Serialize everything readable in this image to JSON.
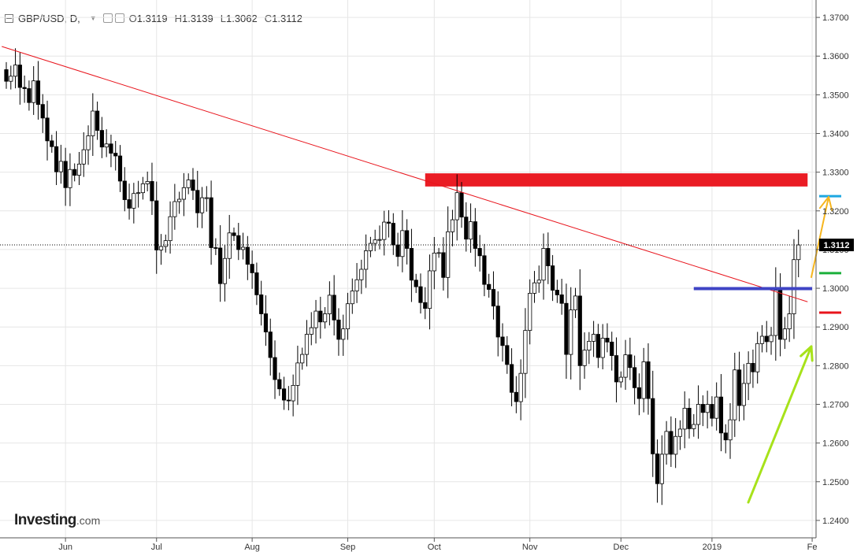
{
  "header": {
    "symbol": "GBP/USD, D,",
    "open_label": "O",
    "open": "1.3119",
    "high_label": "H",
    "high": "1.3139",
    "low_label": "L",
    "low": "1.3062",
    "close_label": "C",
    "close": "1.3112"
  },
  "logo": {
    "main": "Investing",
    "suffix": ".com"
  },
  "chart_data": {
    "type": "candlestick",
    "ylim": [
      1.2355,
      1.3745
    ],
    "y_ticks": [
      "1.3700",
      "1.3600",
      "1.3500",
      "1.3400",
      "1.3300",
      "1.3200",
      "1.3100",
      "1.3000",
      "1.2900",
      "1.2800",
      "1.2700",
      "1.2600",
      "1.2500",
      "1.2400"
    ],
    "x_ticks": [
      {
        "label": "Jun",
        "i": 13
      },
      {
        "label": "Jul",
        "i": 33
      },
      {
        "label": "Aug",
        "i": 54
      },
      {
        "label": "Sep",
        "i": 75
      },
      {
        "label": "Oct",
        "i": 94
      },
      {
        "label": "Nov",
        "i": 115
      },
      {
        "label": "Dec",
        "i": 135
      },
      {
        "label": "2019",
        "i": 155
      },
      {
        "label": "Fe",
        "i": 177
      }
    ],
    "last_price_label": "1.3112",
    "last_price": 1.3112,
    "grid": true,
    "colors": {
      "up": "#ffffff",
      "down": "#000000",
      "trendline": "#e8141c",
      "zone": "#ea1c24",
      "level": "#3f44c5",
      "tick_cyan": "#1ea7e1",
      "tick_green": "#1bb03b",
      "tick_red": "#e8141c",
      "arrow_orange": "#f6b51e",
      "arrow_green": "#a7e21a",
      "grid": "#e6e6e6"
    },
    "trendline": [
      {
        "i": -1,
        "y": 1.3625
      },
      {
        "i": 176,
        "y": 1.2965
      }
    ],
    "resistance_zone": {
      "i0": 92,
      "i1": 176,
      "y0": 1.3263,
      "y1": 1.3297
    },
    "support_level": {
      "i0": 151,
      "i1": 177,
      "y": 1.2999
    },
    "price_marks": [
      {
        "y": 1.3238,
        "color": "cyan"
      },
      {
        "y": 1.3039,
        "color": "green"
      },
      {
        "y": 1.2937,
        "color": "red"
      }
    ],
    "close": [
      1.3535,
      1.3548,
      1.3577,
      1.3519,
      1.3516,
      1.348,
      1.3536,
      1.3475,
      1.344,
      1.3381,
      1.3366,
      1.3301,
      1.3328,
      1.326,
      1.3307,
      1.3292,
      1.3321,
      1.3358,
      1.3394,
      1.3458,
      1.3408,
      1.3365,
      1.3373,
      1.3349,
      1.3342,
      1.3277,
      1.3229,
      1.3207,
      1.3245,
      1.3247,
      1.327,
      1.3276,
      1.3226,
      1.3099,
      1.3108,
      1.3123,
      1.3185,
      1.3224,
      1.323,
      1.326,
      1.328,
      1.3253,
      1.3195,
      1.3234,
      1.3234,
      1.3105,
      1.3104,
      1.3012,
      1.3077,
      1.3143,
      1.3136,
      1.31,
      1.3106,
      1.3062,
      1.304,
      1.2983,
      1.2934,
      1.2887,
      1.2821,
      1.2764,
      1.274,
      1.2711,
      1.2709,
      1.2749,
      1.2807,
      1.2829,
      1.2881,
      1.2898,
      1.2941,
      1.2913,
      1.2934,
      1.2982,
      1.2918,
      1.2868,
      1.2895,
      1.296,
      1.2993,
      1.3022,
      1.3049,
      1.3097,
      1.3116,
      1.3125,
      1.3126,
      1.3171,
      1.3168,
      1.3112,
      1.3082,
      1.3149,
      1.3103,
      1.3021,
      1.3004,
      1.2963,
      1.2948,
      1.3045,
      1.3091,
      1.3092,
      1.3028,
      1.3146,
      1.3177,
      1.3247,
      1.3184,
      1.3127,
      1.3172,
      1.3103,
      1.3084,
      1.301,
      1.2997,
      1.2954,
      1.2874,
      1.2852,
      1.2803,
      1.2731,
      1.2707,
      1.278,
      1.2891,
      1.2987,
      1.3014,
      1.3021,
      1.3103,
      1.3058,
      1.2995,
      1.2983,
      1.2961,
      1.2829,
      1.2944,
      1.298,
      1.28,
      1.284,
      1.2863,
      1.2881,
      1.2821,
      1.2871,
      1.2861,
      1.2826,
      1.2758,
      1.277,
      1.2828,
      1.2795,
      1.2743,
      1.2715,
      1.281,
      1.2715,
      1.2572,
      1.2495,
      1.2571,
      1.263,
      1.2571,
      1.2617,
      1.2636,
      1.269,
      1.2637,
      1.2648,
      1.27,
      1.2679,
      1.27,
      1.2664,
      1.2719,
      1.2626,
      1.2608,
      1.266,
      1.2789,
      1.2697,
      1.2754,
      1.2806,
      1.2784,
      1.2857,
      1.2876,
      1.2862,
      1.2878,
      1.2995,
      1.2868,
      1.2895,
      1.2934,
      1.3074,
      1.3112
    ]
  }
}
